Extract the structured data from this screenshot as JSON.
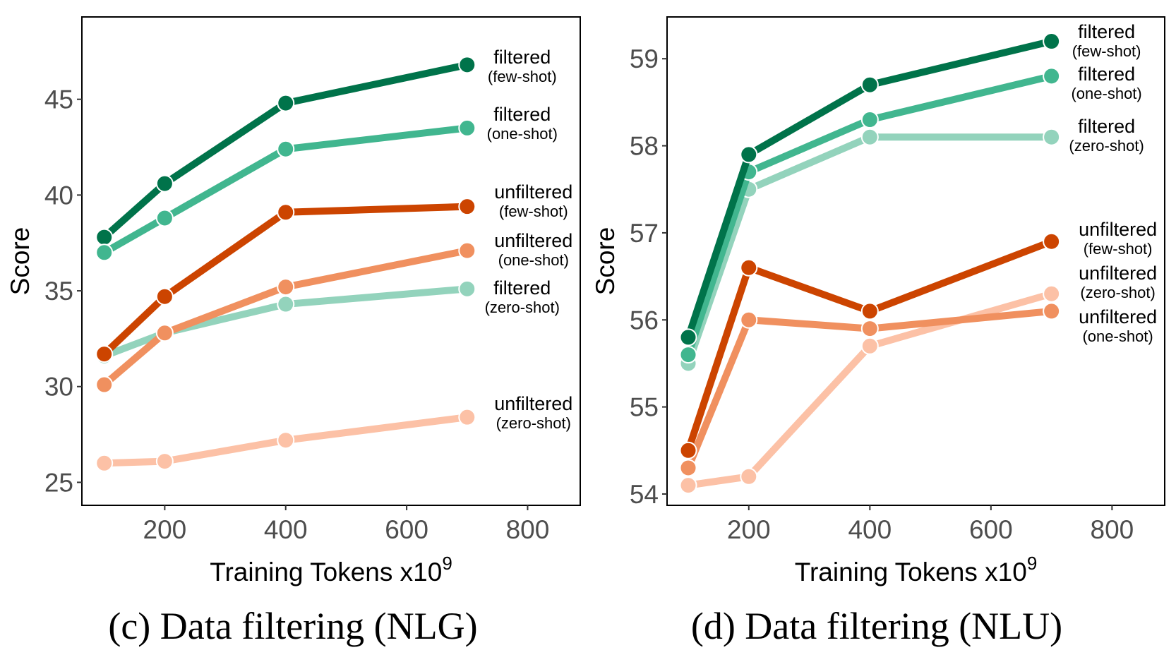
{
  "chart_data": [
    {
      "type": "line",
      "caption": "(c) Data filtering (NLG)",
      "xlabel": "Training Tokens x10",
      "xlabel_sup": "9",
      "ylabel": "Score",
      "xlim": [
        63,
        887
      ],
      "ylim": [
        23.8,
        49.3
      ],
      "xticks": [
        200,
        400,
        600,
        800
      ],
      "yticks": [
        25,
        30,
        35,
        40,
        45
      ],
      "grid": false,
      "legend": "direct labels at line ends",
      "x": [
        100,
        200,
        400,
        700
      ],
      "series": [
        {
          "name": "filtered (few-shot)",
          "line1": "filtered",
          "line2": "(few-shot)",
          "color": "#00734a",
          "values": [
            37.8,
            40.6,
            44.8,
            46.8
          ]
        },
        {
          "name": "filtered (one-shot)",
          "line1": "filtered",
          "line2": "(one-shot)",
          "color": "#41b68f",
          "values": [
            37.0,
            38.8,
            42.4,
            43.5
          ]
        },
        {
          "name": "filtered (zero-shot)",
          "line1": "filtered",
          "line2": "(zero-shot)",
          "color": "#93d3bc",
          "values": [
            31.6,
            32.8,
            34.3,
            35.1
          ]
        },
        {
          "name": "unfiltered (few-shot)",
          "line1": "unfiltered",
          "line2": "(few-shot)",
          "color": "#cc4400",
          "values": [
            31.7,
            34.7,
            39.1,
            39.4
          ]
        },
        {
          "name": "unfiltered (one-shot)",
          "line1": "unfiltered",
          "line2": "(one-shot)",
          "color": "#f0905f",
          "values": [
            30.1,
            32.8,
            35.2,
            37.1
          ]
        },
        {
          "name": "unfiltered (zero-shot)",
          "line1": "unfiltered",
          "line2": "(zero-shot)",
          "color": "#fcc1a6",
          "values": [
            26.0,
            26.1,
            27.2,
            28.4
          ]
        }
      ]
    },
    {
      "type": "line",
      "caption": "(d) Data filtering (NLU)",
      "xlabel": "Training Tokens x10",
      "xlabel_sup": "9",
      "ylabel": "Score",
      "xlim": [
        65,
        887
      ],
      "ylim": [
        53.87,
        59.48
      ],
      "xticks": [
        200,
        400,
        600,
        800
      ],
      "yticks": [
        54,
        55,
        56,
        57,
        58,
        59
      ],
      "grid": false,
      "legend": "direct labels at line ends",
      "x": [
        100,
        200,
        400,
        700
      ],
      "series": [
        {
          "name": "filtered (zero-shot)",
          "line1": "filtered",
          "line2": "(zero-shot)",
          "color": "#93d3bc",
          "values": [
            55.5,
            57.5,
            58.1,
            58.1
          ]
        },
        {
          "name": "filtered (one-shot)",
          "line1": "filtered",
          "line2": "(one-shot)",
          "color": "#41b68f",
          "values": [
            55.6,
            57.7,
            58.3,
            58.8
          ]
        },
        {
          "name": "filtered (few-shot)",
          "line1": "filtered",
          "line2": "(few-shot)",
          "color": "#00734a",
          "values": [
            55.8,
            57.9,
            58.7,
            59.2
          ]
        },
        {
          "name": "unfiltered (zero-shot)",
          "line1": "unfiltered",
          "line2": "(zero-shot)",
          "color": "#fcc1a6",
          "values": [
            54.1,
            54.2,
            55.7,
            56.3
          ]
        },
        {
          "name": "unfiltered (one-shot)",
          "line1": "unfiltered",
          "line2": "(one-shot)",
          "color": "#f0905f",
          "values": [
            54.3,
            56.0,
            55.9,
            56.1
          ]
        },
        {
          "name": "unfiltered (few-shot)",
          "line1": "unfiltered",
          "line2": "(few-shot)",
          "color": "#cc4400",
          "values": [
            54.5,
            56.6,
            56.1,
            56.9
          ]
        }
      ]
    }
  ]
}
